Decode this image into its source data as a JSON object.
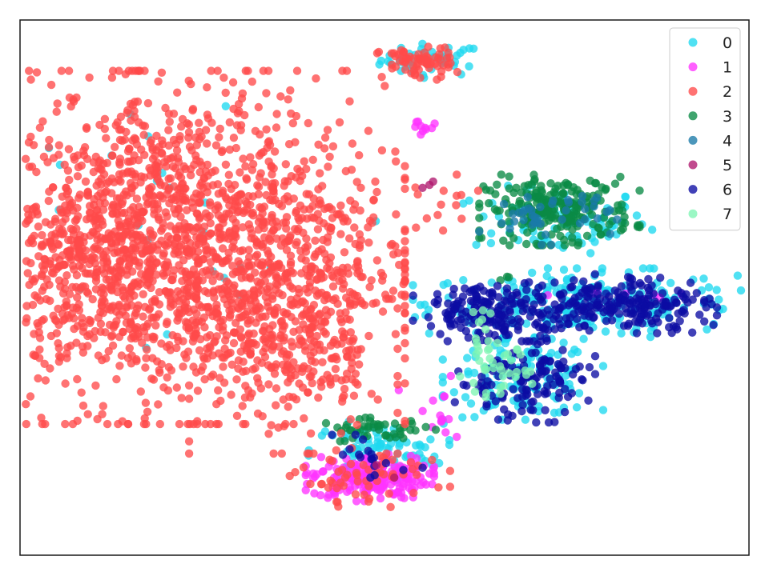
{
  "chart_data": {
    "type": "scatter",
    "title": "",
    "xlabel": "",
    "ylabel": "",
    "xlim": [
      -100,
      100
    ],
    "ylim": [
      -100,
      100
    ],
    "grid": false,
    "ticks": false,
    "legend": {
      "placement": "top-right"
    },
    "series": [
      {
        "name": "0",
        "color": "#1fd8f0",
        "clusters": [
          {
            "region": "top-small",
            "center": [
              13,
              85
            ],
            "spread": [
              7,
              3
            ],
            "count": 45
          },
          {
            "region": "upper-right",
            "center": [
              48,
              25
            ],
            "spread": [
              12,
              6
            ],
            "count": 90
          },
          {
            "region": "middle-right",
            "center": [
              54,
              -6
            ],
            "spread": [
              21,
              6
            ],
            "count": 260
          },
          {
            "region": "lower-right",
            "center": [
              38,
              -34
            ],
            "spread": [
              10,
              7
            ],
            "count": 140
          },
          {
            "region": "bottom",
            "center": [
              -2,
              -61
            ],
            "spread": [
              9,
              5
            ],
            "count": 80
          },
          {
            "region": "main-edge",
            "center": [
              -57,
              25
            ],
            "spread": [
              32,
              32
            ],
            "count": 25
          }
        ]
      },
      {
        "name": "1",
        "color": "#ff33ff",
        "clusters": [
          {
            "region": "bottom",
            "center": [
              -4,
              -71
            ],
            "spread": [
              8,
              4
            ],
            "count": 200
          },
          {
            "region": "bridge",
            "center": [
              14,
              -48
            ],
            "spread": [
              5,
              7
            ],
            "count": 14
          },
          {
            "region": "top-small-tail",
            "center": [
              11,
              60
            ],
            "spread": [
              2,
              2
            ],
            "count": 10
          },
          {
            "region": "right-edge",
            "center": [
              69,
              -3
            ],
            "spread": [
              11,
              1
            ],
            "count": 8
          }
        ]
      },
      {
        "name": "2",
        "color": "#ff4a4a",
        "clusters": [
          {
            "region": "main",
            "center": [
              -56,
              15
            ],
            "spread": [
              28,
              30
            ],
            "count": 1700
          },
          {
            "region": "main-left",
            "center": [
              -78,
              12
            ],
            "spread": [
              12,
              17
            ],
            "count": 250
          },
          {
            "region": "main-right-lower",
            "center": [
              -25,
              -18
            ],
            "spread": [
              13,
              20
            ],
            "count": 300
          },
          {
            "region": "top-small",
            "center": [
              9,
              84
            ],
            "spread": [
              5,
              3
            ],
            "count": 70
          },
          {
            "region": "bottom",
            "center": [
              -4,
              -71
            ],
            "spread": [
              10,
              5
            ],
            "count": 60
          },
          {
            "region": "mid-bridge",
            "center": [
              17,
              29
            ],
            "spread": [
              4,
              6
            ],
            "count": 14
          }
        ]
      },
      {
        "name": "3",
        "color": "#0a8a45",
        "clusters": [
          {
            "region": "upper-right",
            "center": [
              48,
              29
            ],
            "spread": [
              10,
              6
            ],
            "count": 230
          },
          {
            "region": "bottom-top-band",
            "center": [
              -2,
              -53
            ],
            "spread": [
              8,
              2
            ],
            "count": 45
          },
          {
            "region": "stray",
            "center": [
              34,
              3
            ],
            "spread": [
              1,
              1
            ],
            "count": 3
          }
        ]
      },
      {
        "name": "4",
        "color": "#1a7aa8",
        "clusters": [
          {
            "region": "upper-right",
            "center": [
              44,
              27
            ],
            "spread": [
              9,
              5
            ],
            "count": 45
          }
        ]
      },
      {
        "name": "5",
        "color": "#b0186e",
        "clusters": [
          {
            "region": "mid-bridge",
            "center": [
              13,
              38
            ],
            "spread": [
              2,
              2
            ],
            "count": 3
          },
          {
            "region": "bottom",
            "center": [
              -4,
              -68
            ],
            "spread": [
              4,
              3
            ],
            "count": 2
          }
        ]
      },
      {
        "name": "6",
        "color": "#0c0ca3",
        "clusters": [
          {
            "region": "middle-right-left",
            "center": [
              32,
              -9
            ],
            "spread": [
              11,
              5
            ],
            "count": 200
          },
          {
            "region": "middle-right-right",
            "center": [
              67,
              -6
            ],
            "spread": [
              11,
              5
            ],
            "count": 200
          },
          {
            "region": "lower-right",
            "center": [
              38,
              -35
            ],
            "spread": [
              9,
              7
            ],
            "count": 130
          },
          {
            "region": "bottom",
            "center": [
              -4,
              -66
            ],
            "spread": [
              7,
              5
            ],
            "count": 18
          }
        ]
      },
      {
        "name": "7",
        "color": "#7ff5b3",
        "clusters": [
          {
            "region": "lower-right",
            "center": [
              30,
              -30
            ],
            "spread": [
              5,
              5
            ],
            "count": 40
          },
          {
            "region": "middle-right-left",
            "center": [
              25,
              -12
            ],
            "spread": [
              2,
              2
            ],
            "count": 6
          }
        ]
      }
    ]
  }
}
